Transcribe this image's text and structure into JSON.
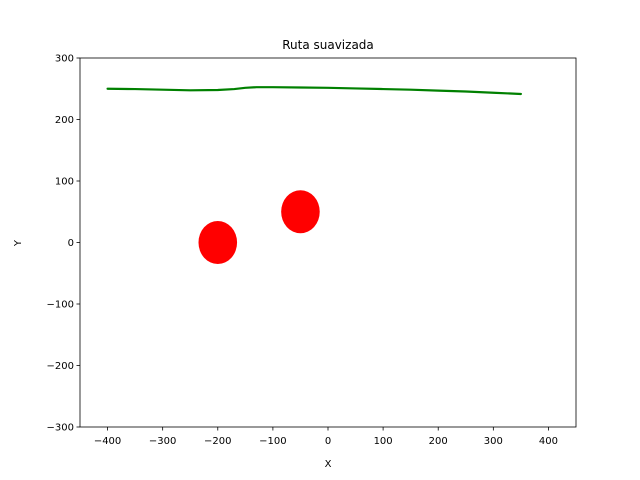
{
  "chart_data": {
    "type": "line",
    "title": "Ruta suavizada",
    "xlabel": "X",
    "ylabel": "Y",
    "xlim": [
      -450,
      450
    ],
    "ylim": [
      -300,
      300
    ],
    "xticks": [
      -400,
      -300,
      -200,
      -100,
      0,
      100,
      200,
      300,
      400
    ],
    "yticks": [
      -300,
      -200,
      -100,
      0,
      100,
      200,
      300
    ],
    "grid": false,
    "legend": "none",
    "series": [
      {
        "color": "#008000",
        "x": [
          -400,
          -350,
          -300,
          -250,
          -200,
          -170,
          -150,
          -130,
          -100,
          -50,
          0,
          50,
          100,
          150,
          200,
          250,
          300,
          350
        ],
        "y": [
          250,
          249.5,
          248.5,
          247.5,
          248,
          249.5,
          251.5,
          252.5,
          252.5,
          252,
          251.5,
          250.5,
          249.5,
          248.5,
          247,
          245.5,
          243.5,
          241.5
        ]
      }
    ],
    "obstacles": [
      {
        "x": -200,
        "y": 0,
        "rx": 35,
        "ry": 35,
        "color": "#ff0000"
      },
      {
        "x": -50,
        "y": 50,
        "rx": 35,
        "ry": 35,
        "color": "#ff0000"
      }
    ]
  }
}
